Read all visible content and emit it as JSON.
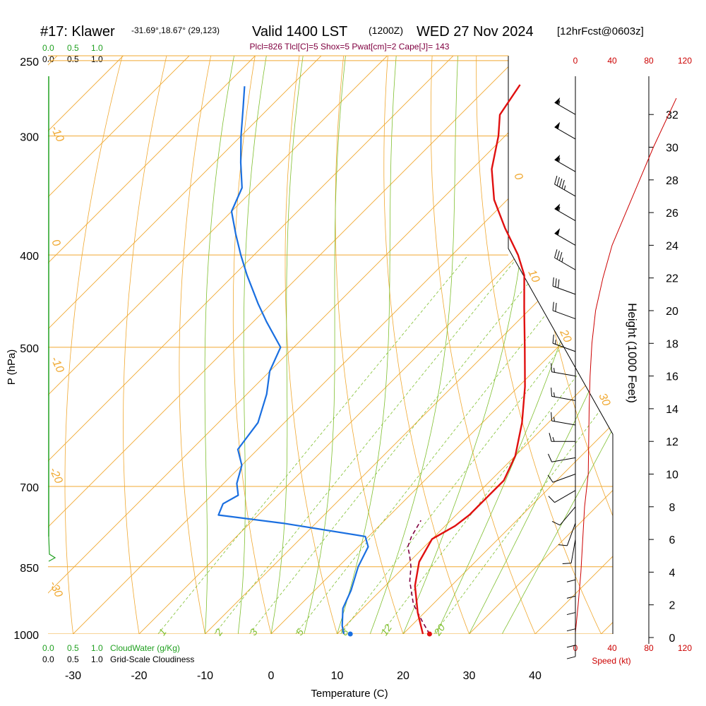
{
  "header": {
    "station": "#17: Klawer",
    "coords": "-31.69°,18.67° (29,123)",
    "valid": "Valid 1400 LST",
    "utc": "(1200Z)",
    "date": "WED 27 Nov 2024",
    "fcst": "[12hrFcst@0603z]",
    "indices": "Plcl=826 Tlcl[C]=5 Shox=5 Pwat[cm]=2 Cape[J]= 143"
  },
  "scales": {
    "cloudwater_ticks": [
      "0.0",
      "0.5",
      "1.0"
    ],
    "cloudiness_ticks": [
      "0.0",
      "0.5",
      "1.0"
    ],
    "cloudwater_label": "CloudWater (g/Kg)",
    "cloudiness_label": "Grid-Scale Cloudiness",
    "speed_ticks": [
      "0",
      "40",
      "80",
      "120"
    ],
    "speed_label": "Speed (kt)"
  },
  "colors": {
    "isotherm": "#f0a830",
    "mixing_ratio": "#7fbf2f",
    "temperature": "#e01010",
    "dewpoint": "#1a6fe0",
    "parcel": "#800040",
    "cloudwater": "#20a020",
    "speed": "#cc0000"
  },
  "chart_data": {
    "type": "line",
    "subtype": "skew-T log-P sounding",
    "xlabel": "Temperature (C)",
    "ylabel": "P (hPa)",
    "y2label": "Height (1000 Feet)",
    "x_ticks": [
      -30,
      -20,
      -10,
      0,
      10,
      20,
      30,
      40
    ],
    "pressure_ticks": [
      1000,
      850,
      700,
      500,
      400,
      300,
      250
    ],
    "height_ticks": [
      0,
      2,
      4,
      6,
      8,
      10,
      12,
      14,
      16,
      18,
      20,
      22,
      24,
      26,
      28,
      30,
      32
    ],
    "isotherm_labels": [
      {
        "label": "-10",
        "p": 300
      },
      {
        "label": "0",
        "p": 400
      },
      {
        "label": "-10",
        "p": 520
      },
      {
        "label": "-20",
        "p": 665
      },
      {
        "label": "-30",
        "p": 890
      },
      {
        "label": "0",
        "p": 325
      },
      {
        "label": "10",
        "p": 410
      },
      {
        "label": "20",
        "p": 475
      },
      {
        "label": "30",
        "p": 565
      }
    ],
    "mixing_ratio_labels": [
      "1",
      "2",
      "3",
      "5",
      "8",
      "12",
      "20"
    ],
    "series": [
      {
        "name": "Temperature",
        "points": [
          [
            23,
            1000
          ],
          [
            19,
            950
          ],
          [
            14.5,
            890
          ],
          [
            11.5,
            840
          ],
          [
            10,
            795
          ],
          [
            11.5,
            770
          ],
          [
            12,
            750
          ],
          [
            12,
            715
          ],
          [
            12,
            690
          ],
          [
            10,
            650
          ],
          [
            6,
            600
          ],
          [
            1,
            550
          ],
          [
            -5,
            500
          ],
          [
            -11,
            455
          ],
          [
            -16,
            420
          ],
          [
            -20,
            400
          ],
          [
            -26,
            375
          ],
          [
            -32,
            350
          ],
          [
            -37,
            325
          ],
          [
            -41,
            300
          ],
          [
            -44,
            285
          ],
          [
            -45.5,
            265
          ]
        ]
      },
      {
        "name": "Dewpoint",
        "points": [
          [
            11,
            1000
          ],
          [
            9.5,
            980
          ],
          [
            7,
            940
          ],
          [
            5.5,
            900
          ],
          [
            3,
            850
          ],
          [
            1.5,
            810
          ],
          [
            -0.5,
            790
          ],
          [
            -15,
            765
          ],
          [
            -26,
            750
          ],
          [
            -27,
            730
          ],
          [
            -26,
            715
          ],
          [
            -28,
            695
          ],
          [
            -30,
            665
          ],
          [
            -33,
            640
          ],
          [
            -34,
            600
          ],
          [
            -37,
            560
          ],
          [
            -40,
            530
          ],
          [
            -42,
            500
          ],
          [
            -48,
            470
          ],
          [
            -52,
            450
          ],
          [
            -58,
            420
          ],
          [
            -62,
            400
          ],
          [
            -66,
            380
          ],
          [
            -70,
            360
          ],
          [
            -72,
            340
          ],
          [
            -76,
            320
          ],
          [
            -80,
            300
          ],
          [
            -84,
            280
          ],
          [
            -87,
            266
          ]
        ]
      },
      {
        "name": "Parcel",
        "points": [
          [
            24,
            1000
          ],
          [
            21,
            970
          ],
          [
            17,
            930
          ],
          [
            13,
            880
          ],
          [
            11,
            850
          ],
          [
            9,
            826
          ],
          [
            7.5,
            810
          ],
          [
            6.5,
            790
          ],
          [
            5.5,
            760
          ]
        ]
      }
    ],
    "surface_temp": 24,
    "surface_dewpoint": 12,
    "wind_speed_profile": [
      [
        0,
        0.3
      ],
      [
        3,
        2
      ],
      [
        6,
        4
      ],
      [
        10,
        8
      ],
      [
        14,
        10
      ],
      [
        15,
        14
      ],
      [
        16,
        16
      ],
      [
        18,
        18
      ],
      [
        22,
        20
      ],
      [
        30,
        22
      ],
      [
        40,
        24
      ],
      [
        55,
        26
      ],
      [
        70,
        28
      ],
      [
        85,
        30
      ],
      [
        110,
        33
      ]
    ],
    "wind_barbs": [
      {
        "hkft": 32,
        "dir": 300,
        "spd": 55
      },
      {
        "hkft": 30.5,
        "dir": 300,
        "spd": 50
      },
      {
        "hkft": 28.5,
        "dir": 300,
        "spd": 55
      },
      {
        "hkft": 27,
        "dir": 300,
        "spd": 45
      },
      {
        "hkft": 25.5,
        "dir": 300,
        "spd": 55
      },
      {
        "hkft": 24,
        "dir": 300,
        "spd": 50
      },
      {
        "hkft": 22.5,
        "dir": 300,
        "spd": 35
      },
      {
        "hkft": 21,
        "dir": 290,
        "spd": 30
      },
      {
        "hkft": 19.5,
        "dir": 290,
        "spd": 20
      },
      {
        "hkft": 17.5,
        "dir": 290,
        "spd": 15
      },
      {
        "hkft": 16,
        "dir": 280,
        "spd": 15
      },
      {
        "hkft": 14.5,
        "dir": 280,
        "spd": 15
      },
      {
        "hkft": 13,
        "dir": 280,
        "spd": 15
      },
      {
        "hkft": 12,
        "dir": 270,
        "spd": 15
      },
      {
        "hkft": 11,
        "dir": 260,
        "spd": 10
      },
      {
        "hkft": 10,
        "dir": 250,
        "spd": 10
      },
      {
        "hkft": 9,
        "dir": 240,
        "spd": 10
      },
      {
        "hkft": 8,
        "dir": 220,
        "spd": 10
      },
      {
        "hkft": 7,
        "dir": 200,
        "spd": 10
      },
      {
        "hkft": 6,
        "dir": 190,
        "spd": 10
      },
      {
        "hkft": 5,
        "dir": 180,
        "spd": 10
      },
      {
        "hkft": 4,
        "dir": 180,
        "spd": 10
      },
      {
        "hkft": 3,
        "dir": 180,
        "spd": 10
      },
      {
        "hkft": 2,
        "dir": 180,
        "spd": 10
      },
      {
        "hkft": 1,
        "dir": 180,
        "spd": 10
      },
      {
        "hkft": 0.3,
        "dir": 180,
        "spd": 10
      }
    ],
    "xlim": [
      -35,
      45
    ],
    "ylim": [
      1000,
      250
    ],
    "grid": true,
    "legend": "none"
  }
}
